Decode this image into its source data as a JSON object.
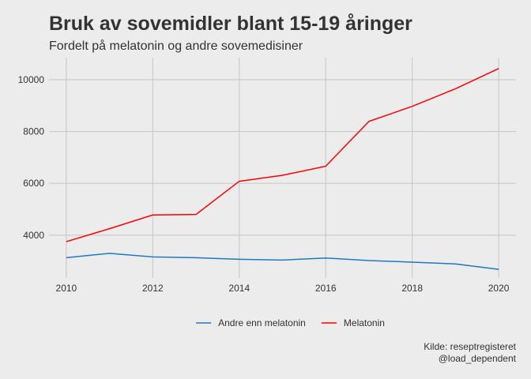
{
  "chart_data": {
    "type": "line",
    "title": "Bruk av sovemidler blant 15-19 åringer",
    "subtitle": "Fordelt på melatonin og andre sovemedisiner",
    "xlabel": "",
    "ylabel": "",
    "x": [
      2010,
      2011,
      2012,
      2013,
      2014,
      2015,
      2016,
      2017,
      2018,
      2019,
      2020
    ],
    "xlim": [
      2009.6,
      2020.4
    ],
    "ylim": [
      2350,
      10850
    ],
    "x_ticks": [
      2010,
      2012,
      2014,
      2016,
      2018,
      2020
    ],
    "y_ticks": [
      4000,
      6000,
      8000,
      10000
    ],
    "x_tick_labels": [
      "2010",
      "2012",
      "2014",
      "2016",
      "2018",
      "2020"
    ],
    "y_tick_labels": [
      "4000",
      "6000",
      "8000",
      "10000"
    ],
    "grid": true,
    "legend_position": "bottom",
    "series": [
      {
        "name": "Andre enn melatonin",
        "color": "#1f78c8",
        "values": [
          3130,
          3300,
          3160,
          3130,
          3070,
          3040,
          3120,
          3020,
          2960,
          2890,
          2680
        ]
      },
      {
        "name": "Melatonin",
        "color": "#ff0000",
        "values": [
          3750,
          4250,
          4780,
          4800,
          6080,
          6310,
          6660,
          8390,
          8970,
          9650,
          10430
        ]
      }
    ],
    "caption": [
      "Kilde: reseptregisteret",
      "@load_dependent"
    ]
  }
}
